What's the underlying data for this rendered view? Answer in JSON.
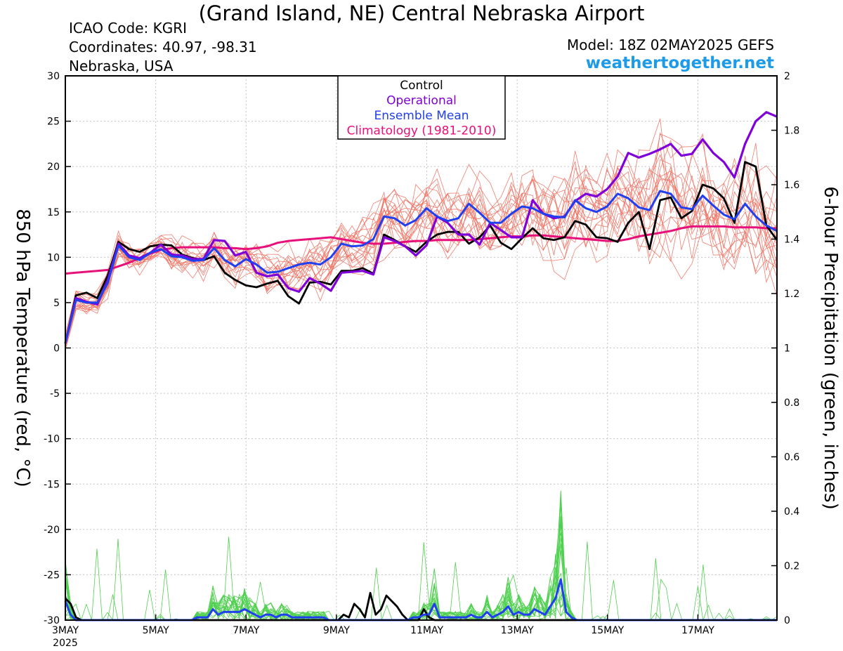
{
  "header": {
    "title": "(Grand Island, NE) Central Nebraska Airport",
    "icao": "ICAO Code: KGRI",
    "coords": "Coordinates: 40.97, -98.31",
    "region": "Nebraska, USA",
    "model": "Model: 18Z 02MAY2025 GEFS",
    "brand": "weathertogether.net"
  },
  "colors": {
    "control": "#000000",
    "operational": "#7f00d8",
    "ensemble_mean": "#2040f0",
    "climatology": "#e8107a",
    "member_temp": "#f07060",
    "member_precip": "#50d050",
    "brand": "#1e9be8"
  },
  "chart_data": {
    "type": "line",
    "ylabel": "850 hPa Temperature (red, °C)",
    "y2label": "6-hour Precipitation (green, inches)",
    "ylim": [
      -30,
      30
    ],
    "y2lim": [
      0,
      2
    ],
    "yticks": [
      "30",
      "25",
      "20",
      "15",
      "10",
      "5",
      "0",
      "-5",
      "-10",
      "-15",
      "-20",
      "-25",
      "-30"
    ],
    "y2ticks": [
      "2",
      "1.8",
      "1.6",
      "1.4",
      "1.2",
      "1",
      "0.8",
      "0.6",
      "0.4",
      "0.2",
      "0"
    ],
    "xlim": [
      3.0,
      18.75
    ],
    "xticks": [
      {
        "x": 3,
        "label": "3MAY",
        "sub": "2025"
      },
      {
        "x": 5,
        "label": "5MAY"
      },
      {
        "x": 7,
        "label": "7MAY"
      },
      {
        "x": 9,
        "label": "9MAY"
      },
      {
        "x": 11,
        "label": "11MAY"
      },
      {
        "x": 13,
        "label": "13MAY"
      },
      {
        "x": 15,
        "label": "15MAY"
      },
      {
        "x": 17,
        "label": "17MAY"
      }
    ],
    "grid": true,
    "legend": {
      "position": "top-center",
      "entries": [
        "Control",
        "Operational",
        "Ensemble Mean",
        "Climatology (1981-2010)"
      ]
    },
    "series": [
      {
        "name": "Control",
        "axis": "temperature",
        "values": [
          0.5,
          5.8,
          6.1,
          5.5,
          8,
          11.7,
          10.9,
          10.6,
          11.2,
          11.4,
          11.3,
          10.3,
          9.9,
          9.7,
          10.1,
          8.3,
          7.5,
          6.9,
          6.7,
          7.1,
          7.4,
          5.7,
          4.9,
          7.2,
          7.3,
          7.0,
          8.5,
          8.5,
          8.8,
          8.2,
          12.5,
          11.9,
          11.2,
          10.6,
          11.7,
          12.5,
          12.8,
          12.8,
          11.5,
          12.2,
          13.5,
          11.6,
          10.9,
          12.1,
          13.2,
          12.1,
          11.9,
          12.2,
          14.0,
          13.6,
          12.2,
          12.1,
          11.7,
          13.8,
          15.0,
          10.9,
          16.3,
          16.6,
          14.3,
          15.1,
          18.0,
          17.6,
          16.5,
          13.8,
          20.5,
          20.0,
          13.5,
          11.9
        ]
      },
      {
        "name": "Operational",
        "axis": "temperature",
        "values": [
          0.5,
          5.5,
          5.1,
          4.8,
          7.5,
          11.5,
          10.2,
          9.9,
          10.5,
          11.4,
          10.3,
          10.2,
          9.8,
          9.8,
          11.9,
          11.8,
          10.2,
          10.6,
          8.3,
          7.9,
          8.1,
          6.6,
          6.2,
          7.7,
          7.1,
          6.3,
          8.3,
          8.4,
          8.5,
          8.1,
          12.2,
          11.8,
          11.2,
          10.2,
          11.3,
          14.5,
          13.8,
          12.5,
          12.5,
          11.4,
          13.8,
          13.0,
          12.2,
          12.2,
          16.3,
          14.8,
          14.3,
          14.5,
          16.2,
          17.0,
          16.7,
          17.5,
          18.9,
          21.5,
          21.0,
          21.4,
          21.9,
          22.5,
          21.2,
          21.4,
          23.0,
          21.5,
          20.5,
          18.8,
          22.5,
          25.0,
          26.0,
          25.5
        ]
      },
      {
        "name": "Ensemble Mean",
        "axis": "temperature",
        "values": [
          0.5,
          5.3,
          5.0,
          5.0,
          7.2,
          11.3,
          10.0,
          9.7,
          10.5,
          10.9,
          10.1,
          10.0,
          9.6,
          9.7,
          11.0,
          9.7,
          9.0,
          9.8,
          9.2,
          8.3,
          8.4,
          8.8,
          9.2,
          9.4,
          9.2,
          10.0,
          11.5,
          11.2,
          11.3,
          12.0,
          14.5,
          14.3,
          13.5,
          14.1,
          15.4,
          14.5,
          14.0,
          14.3,
          15.9,
          14.9,
          13.8,
          13.8,
          14.8,
          15.6,
          15.4,
          14.8,
          14.5,
          14.4,
          16.3,
          15.4,
          15.0,
          15.6,
          17.0,
          16.5,
          15.5,
          15.2,
          17.3,
          17.0,
          15.5,
          15.3,
          16.8,
          15.7,
          14.7,
          14.2,
          15.9,
          14.5,
          13.5,
          12.9
        ]
      },
      {
        "name": "Climatology (1981-2010)",
        "axis": "temperature",
        "values": [
          8.2,
          8.3,
          8.4,
          8.5,
          8.6,
          9.0,
          9.4,
          9.9,
          10.4,
          10.8,
          11.0,
          11.1,
          11.1,
          11.1,
          11.1,
          11.0,
          11.0,
          10.9,
          11.0,
          11.2,
          11.6,
          11.8,
          11.9,
          12.0,
          12.1,
          12.2,
          12.0,
          11.8,
          11.6,
          11.5,
          11.5,
          11.6,
          11.7,
          11.8,
          11.8,
          11.9,
          11.9,
          11.9,
          11.9,
          12.0,
          12.1,
          12.2,
          12.3,
          12.3,
          12.4,
          12.4,
          12.3,
          12.2,
          12.1,
          12.0,
          11.9,
          11.8,
          11.8,
          12.0,
          12.3,
          12.5,
          12.7,
          12.9,
          13.2,
          13.4,
          13.4,
          13.4,
          13.4,
          13.3,
          13.3,
          13.3,
          13.2,
          13.2
        ]
      },
      {
        "name": "Control",
        "axis": "precipitation",
        "values": [
          0.08,
          0.06,
          0.01,
          0,
          0,
          0,
          0,
          0,
          0,
          0,
          0,
          0,
          0,
          0,
          0,
          0,
          0,
          0,
          0,
          0,
          0,
          0,
          0,
          0,
          0,
          0,
          0,
          0,
          0,
          0,
          0,
          0,
          0,
          0,
          0,
          0,
          0,
          0,
          0,
          0,
          0,
          0,
          0,
          0,
          0,
          0,
          0,
          0,
          0,
          0,
          0,
          0,
          0.02,
          0.01,
          0.06,
          0.04,
          0.01,
          0.1,
          0.02,
          0.04,
          0.09,
          0.07,
          0.05,
          0.02,
          0,
          0,
          0,
          0.04,
          0.01,
          0,
          0,
          0,
          0,
          0,
          0,
          0,
          0,
          0,
          0,
          0,
          0,
          0,
          0,
          0,
          0,
          0,
          0,
          0,
          0,
          0,
          0,
          0,
          0,
          0,
          0,
          0,
          0,
          0,
          0,
          0,
          0,
          0,
          0,
          0,
          0,
          0,
          0,
          0,
          0,
          0,
          0,
          0,
          0,
          0,
          0,
          0,
          0,
          0,
          0,
          0,
          0,
          0,
          0,
          0,
          0,
          0,
          0,
          0,
          0,
          0,
          0,
          0,
          0,
          0
        ]
      },
      {
        "name": "Ensemble Mean",
        "axis": "precipitation",
        "values": [
          0.07,
          0.02,
          0,
          0,
          0,
          0,
          0,
          0,
          0,
          0,
          0,
          0,
          0,
          0,
          0,
          0,
          0,
          0,
          0,
          0,
          0,
          0,
          0,
          0,
          0,
          0.01,
          0.01,
          0.01,
          0.04,
          0.02,
          0.03,
          0.03,
          0.03,
          0.03,
          0.04,
          0.03,
          0.02,
          0.01,
          0.02,
          0.02,
          0.01,
          0.02,
          0.02,
          0.01,
          0.01,
          0.01,
          0.01,
          0.01,
          0.01,
          0.01,
          0,
          0,
          0,
          0,
          0,
          0,
          0,
          0,
          0,
          0,
          0,
          0,
          0,
          0,
          0,
          0,
          0.01,
          0.01,
          0.02,
          0.02,
          0.06,
          0.01,
          0.01,
          0.01,
          0.01,
          0.01,
          0.01,
          0.02,
          0.01,
          0.01,
          0.03,
          0.01,
          0.02,
          0.03,
          0.05,
          0.02,
          0.03,
          0.02,
          0.02,
          0.04,
          0.03,
          0.02,
          0.05,
          0.08,
          0.15,
          0.03,
          0.01,
          0,
          0,
          0,
          0,
          0,
          0,
          0,
          0,
          0,
          0,
          0,
          0,
          0,
          0,
          0,
          0,
          0,
          0,
          0,
          0,
          0,
          0,
          0,
          0,
          0,
          0,
          0,
          0,
          0,
          0,
          0,
          0,
          0,
          0,
          0,
          0,
          0,
          0,
          0
        ]
      }
    ]
  }
}
